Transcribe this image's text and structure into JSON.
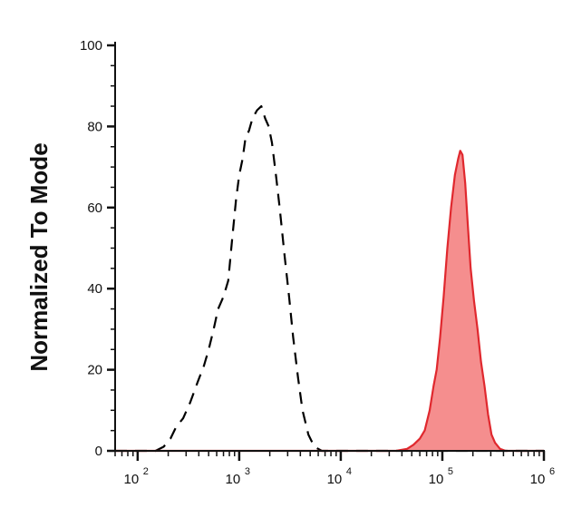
{
  "chart_data": {
    "type": "area",
    "ylabel": "Normalized To Mode",
    "xlabel": "",
    "xscale": "log",
    "xlim": [
      60,
      1000000
    ],
    "ylim": [
      0,
      100
    ],
    "grid": false,
    "legend": "none",
    "yticks": [
      {
        "value": 0,
        "label": "0"
      },
      {
        "value": 20,
        "label": "20"
      },
      {
        "value": 40,
        "label": "40"
      },
      {
        "value": 60,
        "label": "60"
      },
      {
        "value": 80,
        "label": "80"
      },
      {
        "value": 100,
        "label": "100"
      }
    ],
    "xticks": [
      {
        "value": 100,
        "base": "10",
        "exp": "2"
      },
      {
        "value": 1000,
        "base": "10",
        "exp": "3"
      },
      {
        "value": 10000,
        "base": "10",
        "exp": "4"
      },
      {
        "value": 100000,
        "base": "10",
        "exp": "5"
      },
      {
        "value": 1000000,
        "base": "10",
        "exp": "6"
      }
    ],
    "series": [
      {
        "style": "dashed",
        "color": "#000000",
        "fill": "none",
        "points": [
          [
            60,
            0
          ],
          [
            150,
            0
          ],
          [
            180,
            1
          ],
          [
            210,
            3
          ],
          [
            240,
            6
          ],
          [
            280,
            8
          ],
          [
            330,
            12
          ],
          [
            390,
            17
          ],
          [
            450,
            21
          ],
          [
            500,
            25
          ],
          [
            560,
            30
          ],
          [
            620,
            35
          ],
          [
            700,
            38
          ],
          [
            780,
            42
          ],
          [
            850,
            52
          ],
          [
            930,
            62
          ],
          [
            1000,
            68
          ],
          [
            1080,
            72
          ],
          [
            1150,
            77
          ],
          [
            1250,
            79
          ],
          [
            1350,
            82
          ],
          [
            1500,
            84
          ],
          [
            1650,
            85
          ],
          [
            1800,
            82
          ],
          [
            1950,
            80
          ],
          [
            2100,
            76
          ],
          [
            2300,
            68
          ],
          [
            2500,
            60
          ],
          [
            2800,
            48
          ],
          [
            3100,
            38
          ],
          [
            3400,
            28
          ],
          [
            3800,
            18
          ],
          [
            4200,
            10
          ],
          [
            4800,
            4
          ],
          [
            5500,
            1
          ],
          [
            6500,
            0
          ],
          [
            1000000,
            0
          ]
        ]
      },
      {
        "style": "solid",
        "color": "#e0282e",
        "fill": "#f58e8e",
        "points": [
          [
            60,
            0
          ],
          [
            35000,
            0
          ],
          [
            45000,
            0.5
          ],
          [
            52000,
            1.5
          ],
          [
            60000,
            3
          ],
          [
            67000,
            5
          ],
          [
            75000,
            10
          ],
          [
            82000,
            16
          ],
          [
            88000,
            20
          ],
          [
            95000,
            28
          ],
          [
            103000,
            38
          ],
          [
            112000,
            50
          ],
          [
            122000,
            60
          ],
          [
            133000,
            68
          ],
          [
            143000,
            72
          ],
          [
            150000,
            74
          ],
          [
            158000,
            73
          ],
          [
            168000,
            66
          ],
          [
            178000,
            56
          ],
          [
            190000,
            45
          ],
          [
            205000,
            37
          ],
          [
            222000,
            30
          ],
          [
            240000,
            22
          ],
          [
            260000,
            16
          ],
          [
            282000,
            9
          ],
          [
            305000,
            4
          ],
          [
            330000,
            2
          ],
          [
            370000,
            0.5
          ],
          [
            420000,
            0
          ],
          [
            1000000,
            0
          ]
        ]
      }
    ]
  }
}
